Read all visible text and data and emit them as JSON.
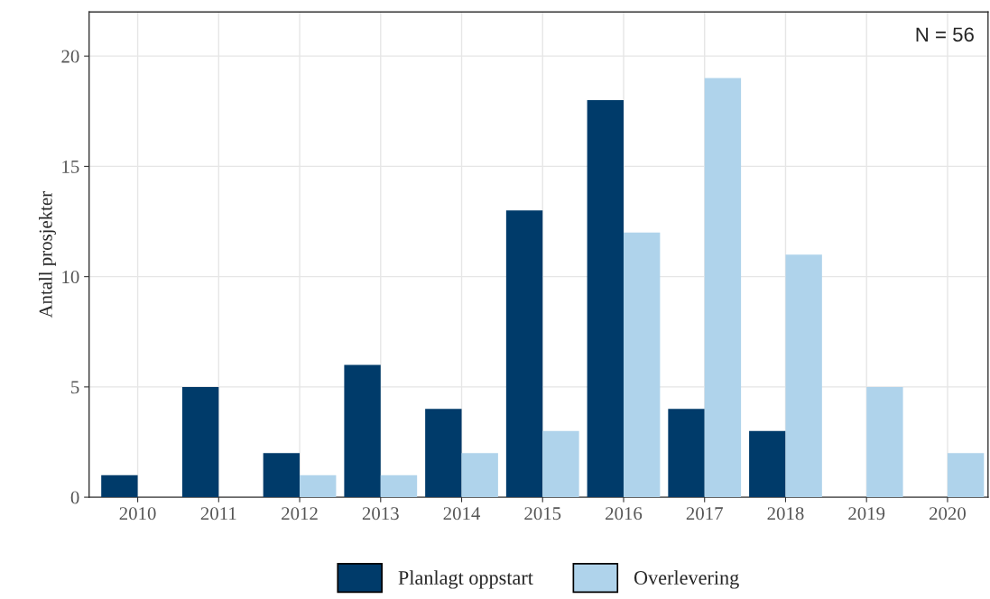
{
  "chart_data": {
    "type": "bar",
    "ylabel": "Antall prosjekter",
    "categories": [
      "2010",
      "2011",
      "2012",
      "2013",
      "2014",
      "2015",
      "2016",
      "2017",
      "2018",
      "2019",
      "2020"
    ],
    "series": [
      {
        "name": "Planlagt oppstart",
        "color": "#003b6a",
        "values": [
          1,
          5,
          2,
          6,
          4,
          13,
          18,
          4,
          3,
          0,
          0
        ]
      },
      {
        "name": "Overlevering",
        "color": "#afd3eb",
        "values": [
          0,
          0,
          1,
          1,
          2,
          3,
          12,
          19,
          11,
          5,
          2
        ]
      }
    ],
    "ylim": [
      0,
      22
    ],
    "yticks": [
      0,
      5,
      10,
      15,
      20
    ],
    "grid": true,
    "legend": "bottom",
    "annotations": [
      "N = 56"
    ]
  }
}
